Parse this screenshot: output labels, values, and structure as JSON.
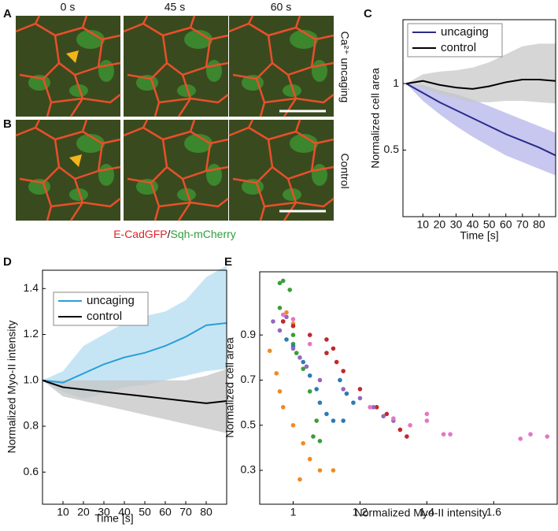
{
  "panels": {
    "a": "A",
    "b": "B",
    "c": "C",
    "d": "D",
    "e": "E"
  },
  "images": {
    "times": [
      "0 s",
      "45 s",
      "60 s"
    ],
    "rows": [
      "Ca²⁺ uncaging",
      "Control"
    ],
    "caption": {
      "red": "E-CadGFP",
      "slash": "/",
      "green": "Sqh-mCherry"
    }
  },
  "chart_data": [
    {
      "type": "line",
      "xlabel": "Time [s]",
      "ylabel": "Normalized cell area",
      "x": [
        0,
        10,
        20,
        30,
        40,
        50,
        60,
        70,
        80,
        90
      ],
      "xlim": [
        -2,
        90
      ],
      "xticks": [
        10,
        20,
        30,
        40,
        50,
        60,
        70,
        80
      ],
      "ylim": [
        0,
        1.48
      ],
      "yticks": [
        0.5,
        1
      ],
      "legend": "upper left",
      "series": [
        {
          "name": "uncaging",
          "color": "#2b2a8a",
          "band_color": "#b4b4ea",
          "values": [
            1,
            0.93,
            0.86,
            0.8,
            0.74,
            0.68,
            0.62,
            0.57,
            0.52,
            0.46
          ],
          "lower": [
            1,
            0.87,
            0.77,
            0.68,
            0.6,
            0.53,
            0.46,
            0.41,
            0.36,
            0.31
          ],
          "upper": [
            1,
            0.99,
            0.95,
            0.92,
            0.88,
            0.83,
            0.78,
            0.73,
            0.68,
            0.63
          ]
        },
        {
          "name": "control",
          "color": "#000000",
          "band_color": "#c8c8c8",
          "values": [
            1,
            1.02,
            0.99,
            0.97,
            0.96,
            0.98,
            1.01,
            1.03,
            1.03,
            1.02
          ],
          "lower": [
            1,
            0.97,
            0.92,
            0.89,
            0.86,
            0.86,
            0.87,
            0.87,
            0.86,
            0.85
          ],
          "upper": [
            1,
            1.07,
            1.09,
            1.1,
            1.12,
            1.16,
            1.22,
            1.28,
            1.3,
            1.3
          ]
        }
      ]
    },
    {
      "type": "line",
      "xlabel": "Time [s]",
      "ylabel": "Normalized Myo-II intensity",
      "x": [
        0,
        10,
        20,
        30,
        40,
        50,
        60,
        70,
        80,
        90
      ],
      "xlim": [
        0,
        90
      ],
      "xticks": [
        10,
        20,
        30,
        40,
        50,
        60,
        70,
        80
      ],
      "ylim": [
        0.46,
        1.48
      ],
      "yticks": [
        0.6,
        0.8,
        {
          "value": 1,
          "label": "1.0"
        },
        1.2,
        1.4
      ],
      "legend": "upper left",
      "series": [
        {
          "name": "uncaging",
          "color": "#2a9fd6",
          "band_color": "#b3dcf0",
          "values": [
            1,
            0.99,
            1.03,
            1.07,
            1.1,
            1.12,
            1.15,
            1.19,
            1.24,
            1.25
          ],
          "lower": [
            1,
            0.95,
            0.92,
            0.94,
            0.97,
            0.98,
            1,
            1.02,
            1.04,
            1.05
          ],
          "upper": [
            1,
            1.04,
            1.15,
            1.2,
            1.25,
            1.28,
            1.3,
            1.35,
            1.45,
            1.5
          ]
        },
        {
          "name": "control",
          "color": "#000000",
          "band_color": "#c4c4c4",
          "values": [
            1,
            0.97,
            0.96,
            0.95,
            0.94,
            0.93,
            0.92,
            0.91,
            0.9,
            0.91
          ],
          "lower": [
            1,
            0.93,
            0.91,
            0.89,
            0.87,
            0.85,
            0.83,
            0.81,
            0.79,
            0.77
          ],
          "upper": [
            1,
            1,
            1,
            1,
            1,
            1,
            1,
            1,
            1.02,
            1.05
          ]
        }
      ]
    },
    {
      "type": "scatter",
      "xlabel": "Normalized Myo-II intensity",
      "ylabel": "Normalized cell area",
      "xlim": [
        0.9,
        1.79
      ],
      "xticks": [
        1,
        1.2,
        1.4,
        1.6
      ],
      "ylim": [
        0.15,
        1.18
      ],
      "yticks": [
        0.3,
        0.5,
        0.7,
        0.9
      ],
      "series": [
        {
          "color": "#3a9e3a",
          "x": [
            0.96,
            0.97,
            0.99,
            0.96,
            0.97,
            1.0,
            1.01,
            1.03,
            1.05,
            1.07,
            1.08,
            1.06,
            1.0
          ],
          "values": [
            1.13,
            1.14,
            1.1,
            1.02,
            0.96,
            0.9,
            0.82,
            0.75,
            0.65,
            0.52,
            0.43,
            0.45,
            0.86
          ]
        },
        {
          "color": "#f08a24",
          "x": [
            0.93,
            0.95,
            0.96,
            0.97,
            1.0,
            1.03,
            1.05,
            1.08,
            1.12,
            1.02,
            0.98,
            1.0
          ],
          "values": [
            0.83,
            0.73,
            0.65,
            0.58,
            0.5,
            0.42,
            0.35,
            0.3,
            0.3,
            0.26,
            1.0,
            0.95
          ]
        },
        {
          "color": "#2d7bb6",
          "x": [
            0.98,
            1.0,
            1.03,
            1.05,
            1.07,
            1.08,
            1.1,
            1.12,
            1.15,
            1.18,
            1.16,
            1.14
          ],
          "values": [
            0.88,
            0.85,
            0.78,
            0.72,
            0.66,
            0.6,
            0.55,
            0.52,
            0.52,
            0.6,
            0.64,
            0.7
          ]
        },
        {
          "color": "#c0282d",
          "x": [
            0.97,
            1.0,
            1.05,
            1.1,
            1.12,
            1.13,
            1.15,
            1.2,
            1.25,
            1.28,
            1.32,
            1.34,
            1.1
          ],
          "values": [
            0.96,
            0.94,
            0.9,
            0.88,
            0.84,
            0.78,
            0.74,
            0.66,
            0.58,
            0.55,
            0.48,
            0.45,
            0.82
          ]
        },
        {
          "color": "#9467bd",
          "x": [
            0.94,
            0.96,
            0.98,
            1.0,
            1.02,
            1.04,
            1.08,
            1.15,
            1.2,
            1.24,
            1.27,
            1.3
          ],
          "values": [
            0.96,
            0.92,
            0.98,
            0.84,
            0.8,
            0.76,
            0.7,
            0.66,
            0.62,
            0.58,
            0.54,
            0.52
          ]
        },
        {
          "color": "#e377c2",
          "x": [
            0.97,
            1.0,
            1.05,
            1.23,
            1.3,
            1.35,
            1.4,
            1.4,
            1.45,
            1.47,
            1.68,
            1.71,
            1.76
          ],
          "values": [
            0.99,
            0.97,
            0.86,
            0.58,
            0.53,
            0.5,
            0.55,
            0.52,
            0.46,
            0.46,
            0.44,
            0.46,
            0.45
          ]
        }
      ]
    }
  ]
}
